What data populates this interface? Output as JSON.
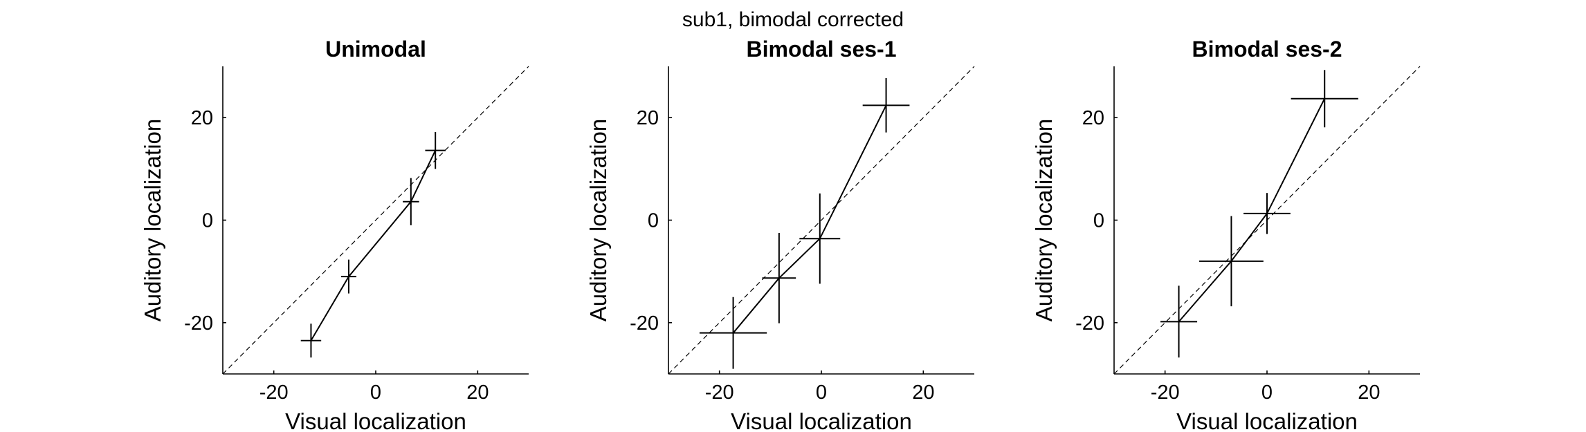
{
  "figure_title": "sub1, bimodal corrected",
  "chart_data": [
    {
      "type": "line",
      "title": "Unimodal",
      "xlabel": "Visual localization",
      "ylabel": "Auditory localization",
      "xlim": [
        -30,
        30
      ],
      "ylim": [
        -30,
        30
      ],
      "xticks": [
        -20,
        0,
        20
      ],
      "yticks": [
        -20,
        0,
        20
      ],
      "xtick_labels": [
        "-20",
        "0",
        "20"
      ],
      "ytick_labels": [
        "-20",
        "0",
        "20"
      ],
      "identity_line": true,
      "series": [
        {
          "x": [
            -12.7,
            -5.3,
            6.9,
            11.7
          ],
          "y": [
            -23.5,
            -11.0,
            3.6,
            13.6
          ],
          "x_err": [
            2.0,
            1.5,
            1.6,
            2.0
          ],
          "y_err": [
            3.3,
            3.3,
            4.6,
            3.6
          ]
        }
      ]
    },
    {
      "type": "line",
      "title": "Bimodal ses-1",
      "xlabel": "Visual localization",
      "ylabel": "Auditory localization",
      "xlim": [
        -30,
        30
      ],
      "ylim": [
        -30,
        30
      ],
      "xticks": [
        -20,
        0,
        20
      ],
      "yticks": [
        -20,
        0,
        20
      ],
      "xtick_labels": [
        "-20",
        "0",
        "20"
      ],
      "ytick_labels": [
        "-20",
        "0",
        "20"
      ],
      "identity_line": true,
      "series": [
        {
          "x": [
            -17.3,
            -8.3,
            -0.3,
            12.7
          ],
          "y": [
            -22.0,
            -11.3,
            -3.6,
            22.4
          ],
          "x_err": [
            6.6,
            3.3,
            4.0,
            4.6
          ],
          "y_err": [
            7.0,
            8.8,
            8.8,
            5.3
          ]
        }
      ]
    },
    {
      "type": "line",
      "title": "Bimodal ses-2",
      "xlabel": "Visual localization",
      "ylabel": "Auditory localization",
      "xlim": [
        -30,
        30
      ],
      "ylim": [
        -30,
        30
      ],
      "xticks": [
        -20,
        0,
        20
      ],
      "yticks": [
        -20,
        0,
        20
      ],
      "xtick_labels": [
        "-20",
        "0",
        "20"
      ],
      "ytick_labels": [
        "-20",
        "0",
        "20"
      ],
      "identity_line": true,
      "series": [
        {
          "x": [
            -17.3,
            -7.0,
            0.0,
            11.3
          ],
          "y": [
            -19.8,
            -8.0,
            1.3,
            23.7
          ],
          "x_err": [
            3.6,
            6.3,
            4.6,
            6.6
          ],
          "y_err": [
            7.0,
            8.8,
            4.0,
            5.6
          ]
        }
      ]
    }
  ]
}
